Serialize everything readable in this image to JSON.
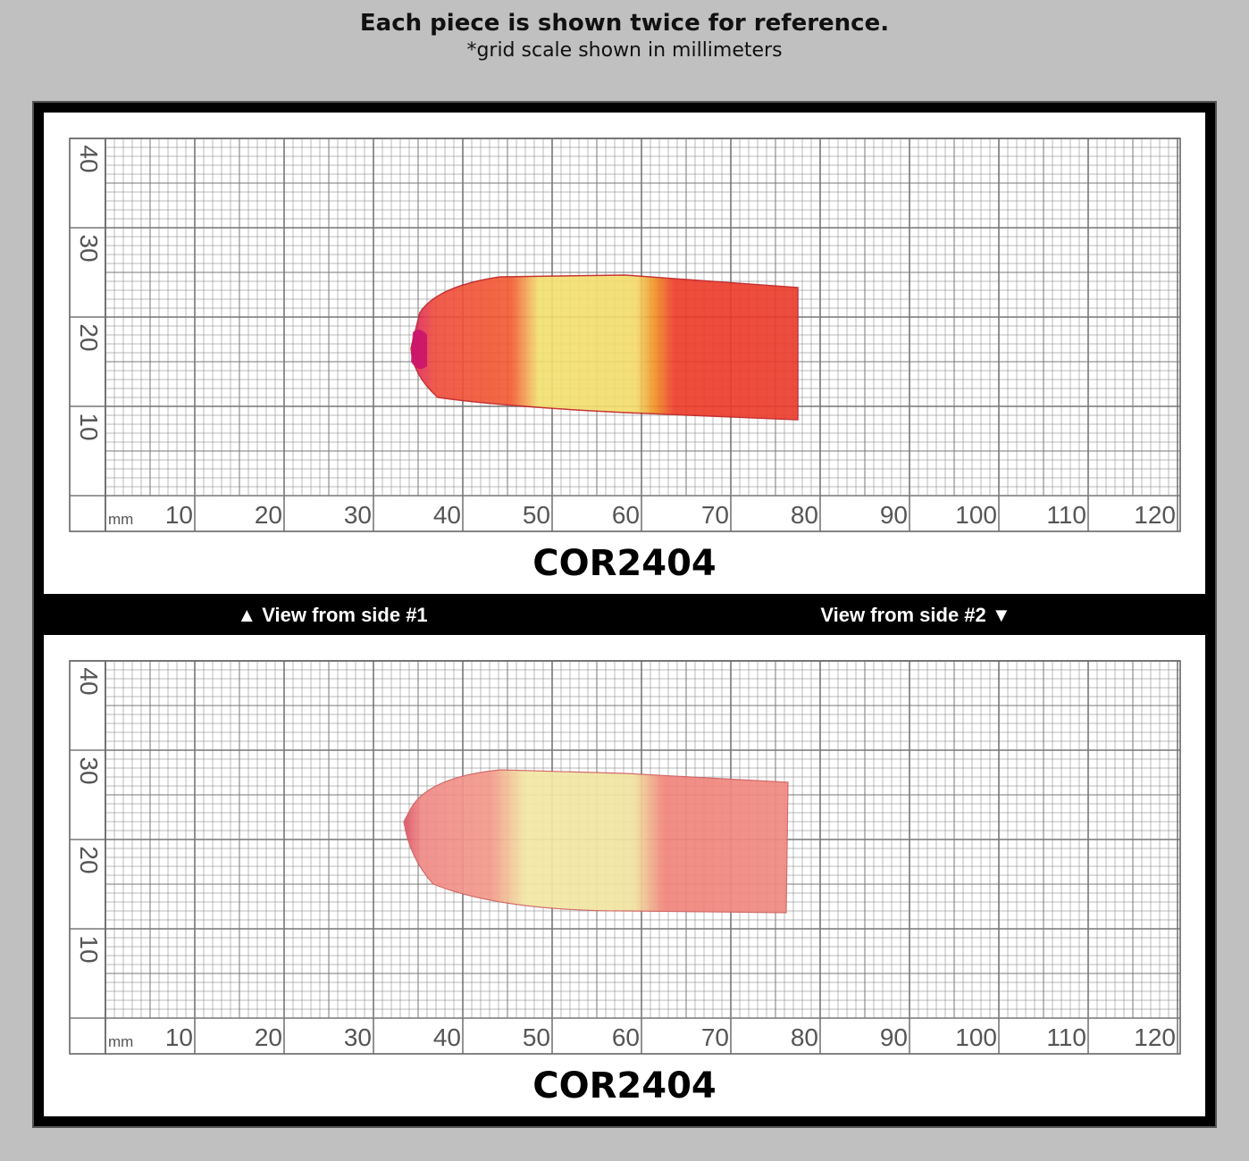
{
  "header": {
    "title": "Each piece is shown twice for reference.",
    "subtitle": "*grid scale shown in millimeters"
  },
  "panels": [
    {
      "x_labels": [
        10,
        20,
        30,
        40,
        50,
        60,
        70,
        80,
        90,
        100,
        110,
        120
      ],
      "y_labels": [
        10,
        20,
        30,
        40
      ],
      "unit": "mm",
      "code": "COR2404"
    },
    {
      "x_labels": [
        10,
        20,
        30,
        40,
        50,
        60,
        70,
        80,
        90,
        100,
        110,
        120
      ],
      "y_labels": [
        10,
        20,
        30,
        40
      ],
      "unit": "mm",
      "code": "COR2404"
    }
  ],
  "captions": [
    "▲ View from side #1",
    "View from side #2 ▼"
  ]
}
